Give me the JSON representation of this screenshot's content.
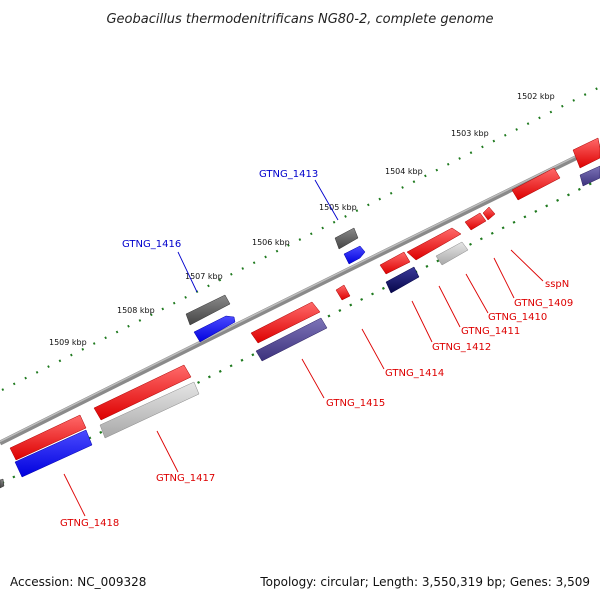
{
  "title": "Geobacillus thermodenitrificans NG80-2, complete genome",
  "footer": {
    "accession": "Accession: NC_009328",
    "topology": "Topology: circular; Length: 3,550,319 bp; Genes: 3,509"
  },
  "kbp_ticks": [
    "1502 kbp",
    "1503 kbp",
    "1504 kbp",
    "1505 kbp",
    "1506 kbp",
    "1507 kbp",
    "1508 kbp",
    "1509 kbp"
  ],
  "gene_labels": {
    "GTNG_1413": "GTNG_1413",
    "GTNG_1416": "GTNG_1416",
    "sspN": "sspN",
    "GTNG_1409": "GTNG_1409",
    "GTNG_1410": "GTNG_1410",
    "GTNG_1411": "GTNG_1411",
    "GTNG_1412": "GTNG_1412",
    "GTNG_1414": "GTNG_1414",
    "GTNG_1415": "GTNG_1415",
    "GTNG_1417": "GTNG_1417",
    "GTNG_1418": "GTNG_1418"
  },
  "colors": {
    "backbone": "#7a7a7a",
    "tick": "#1f7a1f",
    "forward_gene": "#0000ee",
    "reverse_gene": "#ee0000",
    "label_blue": "#0000cc",
    "label_red": "#dd0000",
    "gray_gene": "#555555",
    "light_gray_gene": "#bbbbbb",
    "slate_gene": "#4a3f8c",
    "navy_gene": "#0a0a6a"
  }
}
